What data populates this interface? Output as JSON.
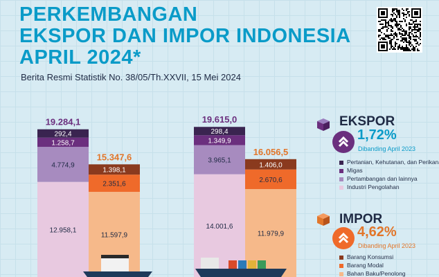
{
  "header": {
    "title_line1": "PERKEMBANGAN",
    "title_line2": "EKSPOR DAN IMPOR INDONESIA",
    "title_line3": "APRIL 2024*",
    "subtitle": "Berita Resmi Statistik No. 38/05/Th.XXVII, 15 Mei 2024"
  },
  "ekspor": {
    "label": "EKSPOR",
    "change": "1,72%",
    "compare": "Dibanding April 2023",
    "categories": [
      "Pertanian, Kehutanan, dan Perikanan",
      "Migas",
      "Pertambangan dan lainnya",
      "Industri Pengolahan"
    ],
    "colors": [
      "#3a2450",
      "#6b2f7e",
      "#a78bbf",
      "#e8c9e0"
    ]
  },
  "impor": {
    "label": "IMPOR",
    "change": "4,62%",
    "compare": "Dibanding April 2023",
    "categories": [
      "Barang Konsumsi",
      "Barang Modal",
      "Bahan Baku/Penolong"
    ],
    "colors": [
      "#8a3a1e",
      "#ef6a2a",
      "#f6b98a"
    ]
  },
  "colors": {
    "accent_blue": "#0a9bc8",
    "accent_orange": "#e2762a",
    "export_total": "#6b2f7e",
    "import_total": "#e2762a"
  },
  "chart_data": [
    {
      "type": "bar",
      "stacked": true,
      "title": "",
      "categories": [
        "Ekspor",
        "Impor"
      ],
      "totals": {
        "Ekspor": "19.284,1",
        "Impor": "15.347,6"
      },
      "series": [
        {
          "name": "Pertanian, Kehutanan, dan Perikanan",
          "values": [
            292.4,
            null
          ],
          "labels": [
            "292,4",
            ""
          ]
        },
        {
          "name": "Migas",
          "values": [
            1258.7,
            null
          ],
          "labels": [
            "1.258,7",
            ""
          ]
        },
        {
          "name": "Pertambangan dan lainnya",
          "values": [
            4774.9,
            null
          ],
          "labels": [
            "4.774,9",
            ""
          ]
        },
        {
          "name": "Industri Pengolahan",
          "values": [
            12958.1,
            null
          ],
          "labels": [
            "12.958,1",
            ""
          ]
        },
        {
          "name": "Barang Konsumsi",
          "values": [
            null,
            1398.1
          ],
          "labels": [
            "",
            "1.398,1"
          ]
        },
        {
          "name": "Barang Modal",
          "values": [
            null,
            2351.6
          ],
          "labels": [
            "",
            "2.351,6"
          ]
        },
        {
          "name": "Bahan Baku/Penolong",
          "values": [
            null,
            11597.9
          ],
          "labels": [
            "",
            "11.597,9"
          ]
        }
      ]
    },
    {
      "type": "bar",
      "stacked": true,
      "title": "",
      "categories": [
        "Ekspor",
        "Impor"
      ],
      "totals": {
        "Ekspor": "19.615,0",
        "Impor": "16.056,5"
      },
      "series": [
        {
          "name": "Pertanian, Kehutanan, dan Perikanan",
          "values": [
            298.4,
            null
          ],
          "labels": [
            "298,4",
            ""
          ]
        },
        {
          "name": "Migas",
          "values": [
            1349.9,
            null
          ],
          "labels": [
            "1.349,9",
            ""
          ]
        },
        {
          "name": "Pertambangan dan lainnya",
          "values": [
            3965.1,
            null
          ],
          "labels": [
            "3.965,1",
            ""
          ]
        },
        {
          "name": "Industri Pengolahan",
          "values": [
            14001.6,
            null
          ],
          "labels": [
            "14.001,6",
            ""
          ]
        },
        {
          "name": "Barang Konsumsi",
          "values": [
            null,
            1406.0
          ],
          "labels": [
            "",
            "1.406,0"
          ]
        },
        {
          "name": "Barang Modal",
          "values": [
            null,
            2670.6
          ],
          "labels": [
            "",
            "2.670,6"
          ]
        },
        {
          "name": "Bahan Baku/Penolong",
          "values": [
            null,
            11979.9
          ],
          "labels": [
            "",
            "11.979,9"
          ]
        }
      ]
    }
  ]
}
